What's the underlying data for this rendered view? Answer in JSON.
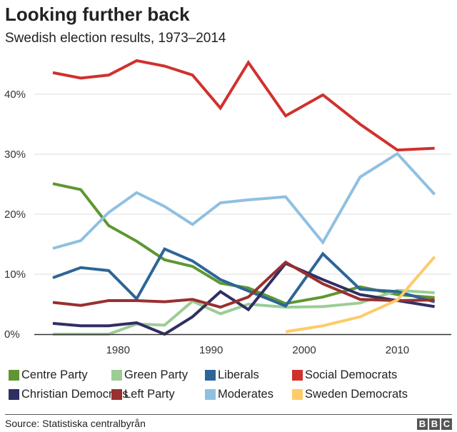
{
  "chart_data": {
    "type": "line",
    "title": "Looking further back",
    "subtitle": "Swedish election results, 1973–2014",
    "x": [
      1973,
      1976,
      1979,
      1982,
      1985,
      1988,
      1991,
      1994,
      1998,
      2002,
      2006,
      2010,
      2014
    ],
    "xticks": [
      "1980",
      "1990",
      "2000",
      "2010"
    ],
    "xtick_values": [
      1980,
      1990,
      2000,
      2010
    ],
    "yticks": [
      "0%",
      "10%",
      "20%",
      "30%",
      "40%"
    ],
    "ytick_values": [
      0,
      10,
      20,
      30,
      40
    ],
    "ylim": [
      0,
      46
    ],
    "xlim": [
      1973,
      2014
    ],
    "grid": true,
    "legend_position": "bottom",
    "series": [
      {
        "name": "Centre Party",
        "color": "#5e9732",
        "values": [
          25.1,
          24.1,
          18.1,
          15.5,
          12.4,
          11.3,
          8.5,
          7.7,
          5.1,
          6.2,
          7.9,
          6.6,
          6.1
        ]
      },
      {
        "name": "Green Party",
        "color": "#9bcd95",
        "values": [
          0,
          0,
          0,
          1.7,
          1.5,
          5.5,
          3.4,
          5.0,
          4.5,
          4.6,
          5.2,
          7.3,
          6.9
        ]
      },
      {
        "name": "Liberals",
        "color": "#2d6598",
        "values": [
          9.4,
          11.1,
          10.6,
          5.9,
          14.2,
          12.2,
          9.1,
          7.2,
          4.7,
          13.4,
          7.5,
          7.1,
          5.4
        ]
      },
      {
        "name": "Social Democrats",
        "color": "#d0312d",
        "values": [
          43.6,
          42.7,
          43.2,
          45.6,
          44.7,
          43.2,
          37.7,
          45.3,
          36.4,
          39.9,
          35.0,
          30.7,
          31.0
        ]
      },
      {
        "name": "Christian Democrats",
        "color": "#2f2f63",
        "values": [
          1.8,
          1.4,
          1.4,
          1.9,
          0,
          2.9,
          7.1,
          4.1,
          11.8,
          9.1,
          6.6,
          5.6,
          4.6
        ]
      },
      {
        "name": "Left Party",
        "color": "#9a2f2f",
        "values": [
          5.3,
          4.8,
          5.6,
          5.6,
          5.4,
          5.8,
          4.5,
          6.2,
          12.0,
          8.4,
          5.8,
          5.6,
          5.7
        ]
      },
      {
        "name": "Moderates",
        "color": "#8fc0e0",
        "values": [
          14.3,
          15.6,
          20.3,
          23.6,
          21.3,
          18.3,
          21.9,
          22.4,
          22.9,
          15.3,
          26.2,
          30.1,
          23.3
        ]
      },
      {
        "name": "Sweden Democrats",
        "color": "#fecb6a",
        "values": [
          null,
          null,
          null,
          null,
          null,
          null,
          null,
          null,
          0.4,
          1.4,
          2.9,
          5.7,
          12.9
        ]
      }
    ]
  },
  "footer": {
    "source": "Source: Statistiska centralbyrån",
    "logo": [
      "B",
      "B",
      "C"
    ]
  }
}
